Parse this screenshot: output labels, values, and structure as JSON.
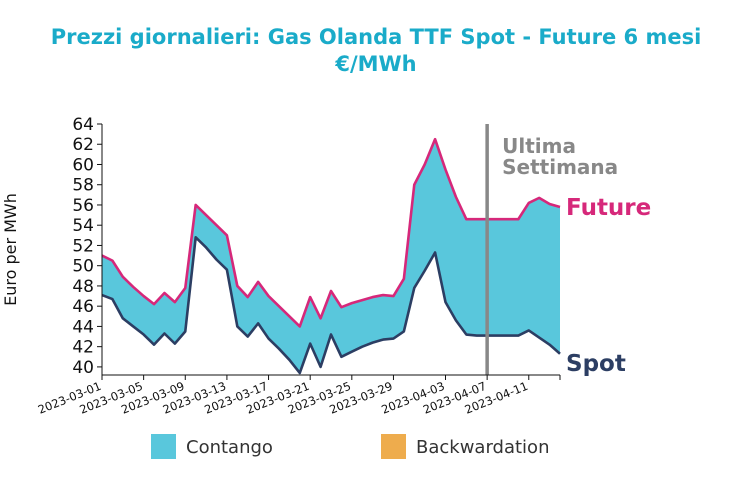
{
  "chart_data": {
    "type": "area",
    "title": "Prezzi giornalieri: Gas Olanda TTF Spot - Future 6 mesi\n€/MWh",
    "ylabel": "Euro per MWh",
    "xlabel": "",
    "ylim": [
      39.2,
      64
    ],
    "yticks": [
      40,
      42,
      44,
      46,
      48,
      50,
      52,
      54,
      56,
      58,
      60,
      62,
      64
    ],
    "xlim": [
      "2023-03-01",
      "2023-04-14"
    ],
    "xticks": [
      "2023-03-01",
      "2023-03-05",
      "2023-03-09",
      "2023-03-13",
      "2023-03-17",
      "2023-03-21",
      "2023-03-25",
      "2023-03-29",
      "2023-04-03",
      "2023-04-07",
      "2023-04-11"
    ],
    "grid": false,
    "x": [
      "2023-03-01",
      "2023-03-02",
      "2023-03-03",
      "2023-03-04",
      "2023-03-05",
      "2023-03-06",
      "2023-03-07",
      "2023-03-08",
      "2023-03-09",
      "2023-03-10",
      "2023-03-11",
      "2023-03-12",
      "2023-03-13",
      "2023-03-14",
      "2023-03-15",
      "2023-03-16",
      "2023-03-17",
      "2023-03-18",
      "2023-03-19",
      "2023-03-20",
      "2023-03-21",
      "2023-03-22",
      "2023-03-23",
      "2023-03-24",
      "2023-03-25",
      "2023-03-26",
      "2023-03-27",
      "2023-03-28",
      "2023-03-29",
      "2023-03-30",
      "2023-03-31",
      "2023-04-01",
      "2023-04-02",
      "2023-04-03",
      "2023-04-04",
      "2023-04-05",
      "2023-04-06",
      "2023-04-07",
      "2023-04-08",
      "2023-04-09",
      "2023-04-10",
      "2023-04-11",
      "2023-04-12",
      "2023-04-13",
      "2023-04-14"
    ],
    "series": [
      {
        "name": "Future",
        "color": "#d6287a",
        "values": [
          51.0,
          50.5,
          48.9,
          47.9,
          47.0,
          46.2,
          47.3,
          46.4,
          47.8,
          56.0,
          55.0,
          54.0,
          53.0,
          48.0,
          46.9,
          48.4,
          47.0,
          46.0,
          45.0,
          44.0,
          46.9,
          44.8,
          47.5,
          45.9,
          46.3,
          46.6,
          46.9,
          47.1,
          47.0,
          48.7,
          58.0,
          60.0,
          62.5,
          59.5,
          56.8,
          54.6,
          54.6,
          54.6,
          54.6,
          54.6,
          54.6,
          56.2,
          56.7,
          56.1,
          55.8
        ]
      },
      {
        "name": "Spot",
        "color": "#2c3e63",
        "values": [
          47.1,
          46.7,
          44.8,
          44.0,
          43.2,
          42.2,
          43.3,
          42.3,
          43.5,
          52.8,
          51.8,
          50.6,
          49.6,
          44.0,
          43.0,
          44.3,
          42.8,
          41.8,
          40.7,
          39.4,
          42.3,
          40.0,
          43.2,
          41.0,
          41.5,
          42.0,
          42.4,
          42.7,
          42.8,
          43.5,
          47.8,
          49.5,
          51.3,
          46.4,
          44.6,
          43.2,
          43.1,
          43.1,
          43.1,
          43.1,
          43.1,
          43.6,
          42.9,
          42.2,
          41.3
        ]
      }
    ],
    "fill_between": {
      "contango_color": "#59c7dc",
      "backwardation_color": "#eeac4d"
    },
    "vline": {
      "x": "2023-04-07",
      "color": "#888888"
    },
    "annotations": {
      "week_line1": "Ultima",
      "week_line2": "Settimana",
      "future_label": "Future",
      "spot_label": "Spot"
    },
    "legend": {
      "placement": "bottom",
      "items": [
        {
          "label": "Contango",
          "color": "#59c7dc"
        },
        {
          "label": "Backwardation",
          "color": "#eeac4d"
        }
      ]
    }
  }
}
